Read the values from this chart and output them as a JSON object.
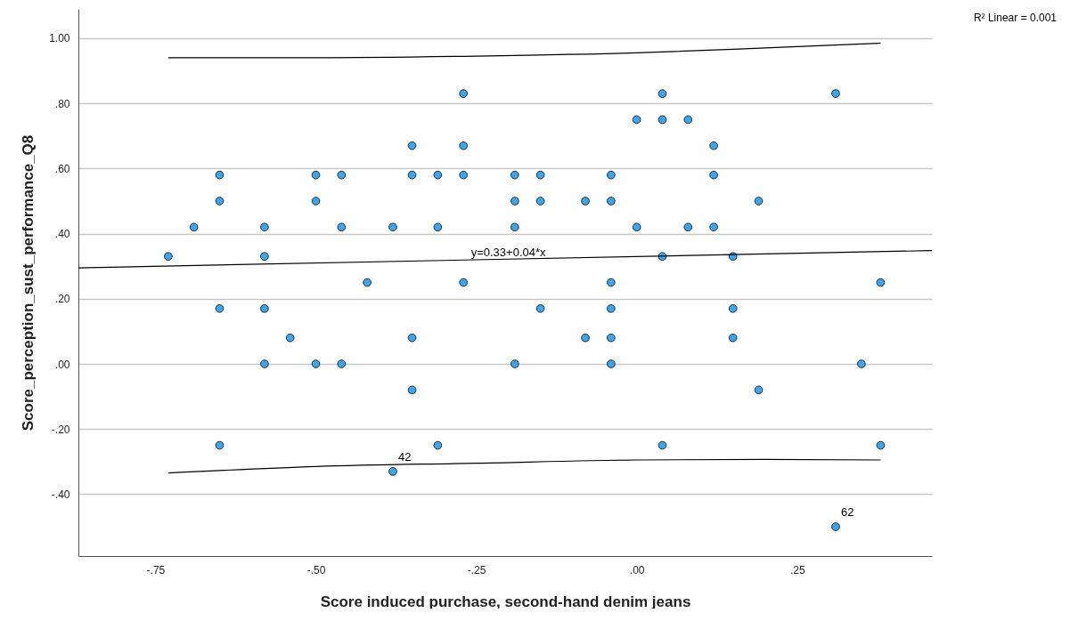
{
  "chart_data": {
    "type": "scatter",
    "xlabel": "Score induced purchase, second-hand denim jeans",
    "ylabel": "Score_perception_sust_performance_Q8",
    "xlim": [
      -0.87,
      0.46
    ],
    "ylim": [
      -0.59,
      1.09
    ],
    "xticks": [
      {
        "value": -0.75,
        "label": "-.75"
      },
      {
        "value": -0.5,
        "label": "-.50"
      },
      {
        "value": -0.25,
        "label": "-.25"
      },
      {
        "value": 0,
        "label": ".00"
      },
      {
        "value": 0.25,
        "label": ".25"
      }
    ],
    "yticks": [
      {
        "value": -0.4,
        "label": "-.40"
      },
      {
        "value": -0.2,
        "label": "-.20"
      },
      {
        "value": 0,
        "label": ".00"
      },
      {
        "value": 0.2,
        "label": ".20"
      },
      {
        "value": 0.4,
        "label": ".40"
      },
      {
        "value": 0.6,
        "label": ".60"
      },
      {
        "value": 0.8,
        "label": ".80"
      },
      {
        "value": 1,
        "label": "1.00"
      }
    ],
    "grid": "y",
    "marker": "circle",
    "series": [
      {
        "color": "#3ba6ec",
        "x": [
          -0.27,
          0.04,
          0.31,
          0,
          0.04,
          0.08,
          -0.35,
          -0.27,
          0.12,
          -0.65,
          -0.5,
          -0.46,
          -0.35,
          -0.31,
          -0.27,
          -0.19,
          -0.15,
          -0.04,
          0.12,
          -0.65,
          -0.5,
          -0.19,
          -0.15,
          -0.08,
          -0.04,
          0.19,
          -0.69,
          -0.58,
          -0.46,
          -0.38,
          -0.31,
          -0.19,
          0,
          0.08,
          0.12,
          -0.73,
          -0.58,
          0.04,
          0.15,
          -0.42,
          -0.27,
          -0.04,
          0.38,
          -0.65,
          -0.58,
          -0.15,
          -0.04,
          0.15,
          -0.54,
          -0.35,
          -0.08,
          -0.04,
          0.15,
          -0.58,
          -0.5,
          -0.46,
          -0.19,
          -0.04,
          0.35,
          -0.35,
          0.19,
          -0.65,
          -0.31,
          0.04,
          0.38,
          -0.38,
          0.31
        ],
        "values": [
          0.83,
          0.83,
          0.83,
          0.75,
          0.75,
          0.75,
          0.67,
          0.67,
          0.67,
          0.58,
          0.58,
          0.58,
          0.58,
          0.58,
          0.58,
          0.58,
          0.58,
          0.58,
          0.58,
          0.5,
          0.5,
          0.5,
          0.5,
          0.5,
          0.5,
          0.5,
          0.42,
          0.42,
          0.42,
          0.42,
          0.42,
          0.42,
          0.42,
          0.42,
          0.42,
          0.33,
          0.33,
          0.33,
          0.33,
          0.25,
          0.25,
          0.25,
          0.25,
          0.17,
          0.17,
          0.17,
          0.17,
          0.17,
          0.08,
          0.08,
          0.08,
          0.08,
          0.08,
          0,
          0,
          0,
          0,
          0,
          0,
          -0.08,
          -0.08,
          -0.25,
          -0.25,
          -0.25,
          -0.25,
          -0.33,
          -0.5
        ]
      },
      {
        "type": "line",
        "color": "#000000",
        "marker": "none",
        "x": [
          -0.87,
          0.46
        ],
        "values": [
          0.295,
          0.348
        ]
      },
      {
        "type": "line",
        "color": "#000000",
        "marker": "none",
        "x": [
          -0.73,
          -0.5,
          -0.25,
          0,
          0.2,
          0.38
        ],
        "values": [
          0.94,
          0.94,
          0.945,
          0.955,
          0.97,
          0.985
        ]
      },
      {
        "type": "line",
        "color": "#000000",
        "marker": "none",
        "x": [
          -0.73,
          -0.5,
          -0.25,
          0,
          0.2,
          0.38
        ],
        "values": [
          -0.335,
          -0.315,
          -0.305,
          -0.295,
          -0.293,
          -0.295
        ]
      }
    ],
    "annotations": [
      {
        "text": "y=0.33+0.04*x",
        "x": -0.2,
        "y": 0.32
      },
      {
        "text": "42",
        "x": -0.38,
        "y": -0.33
      },
      {
        "text": "62",
        "x": 0.31,
        "y": -0.5
      },
      "R² Linear = 0.001"
    ]
  }
}
